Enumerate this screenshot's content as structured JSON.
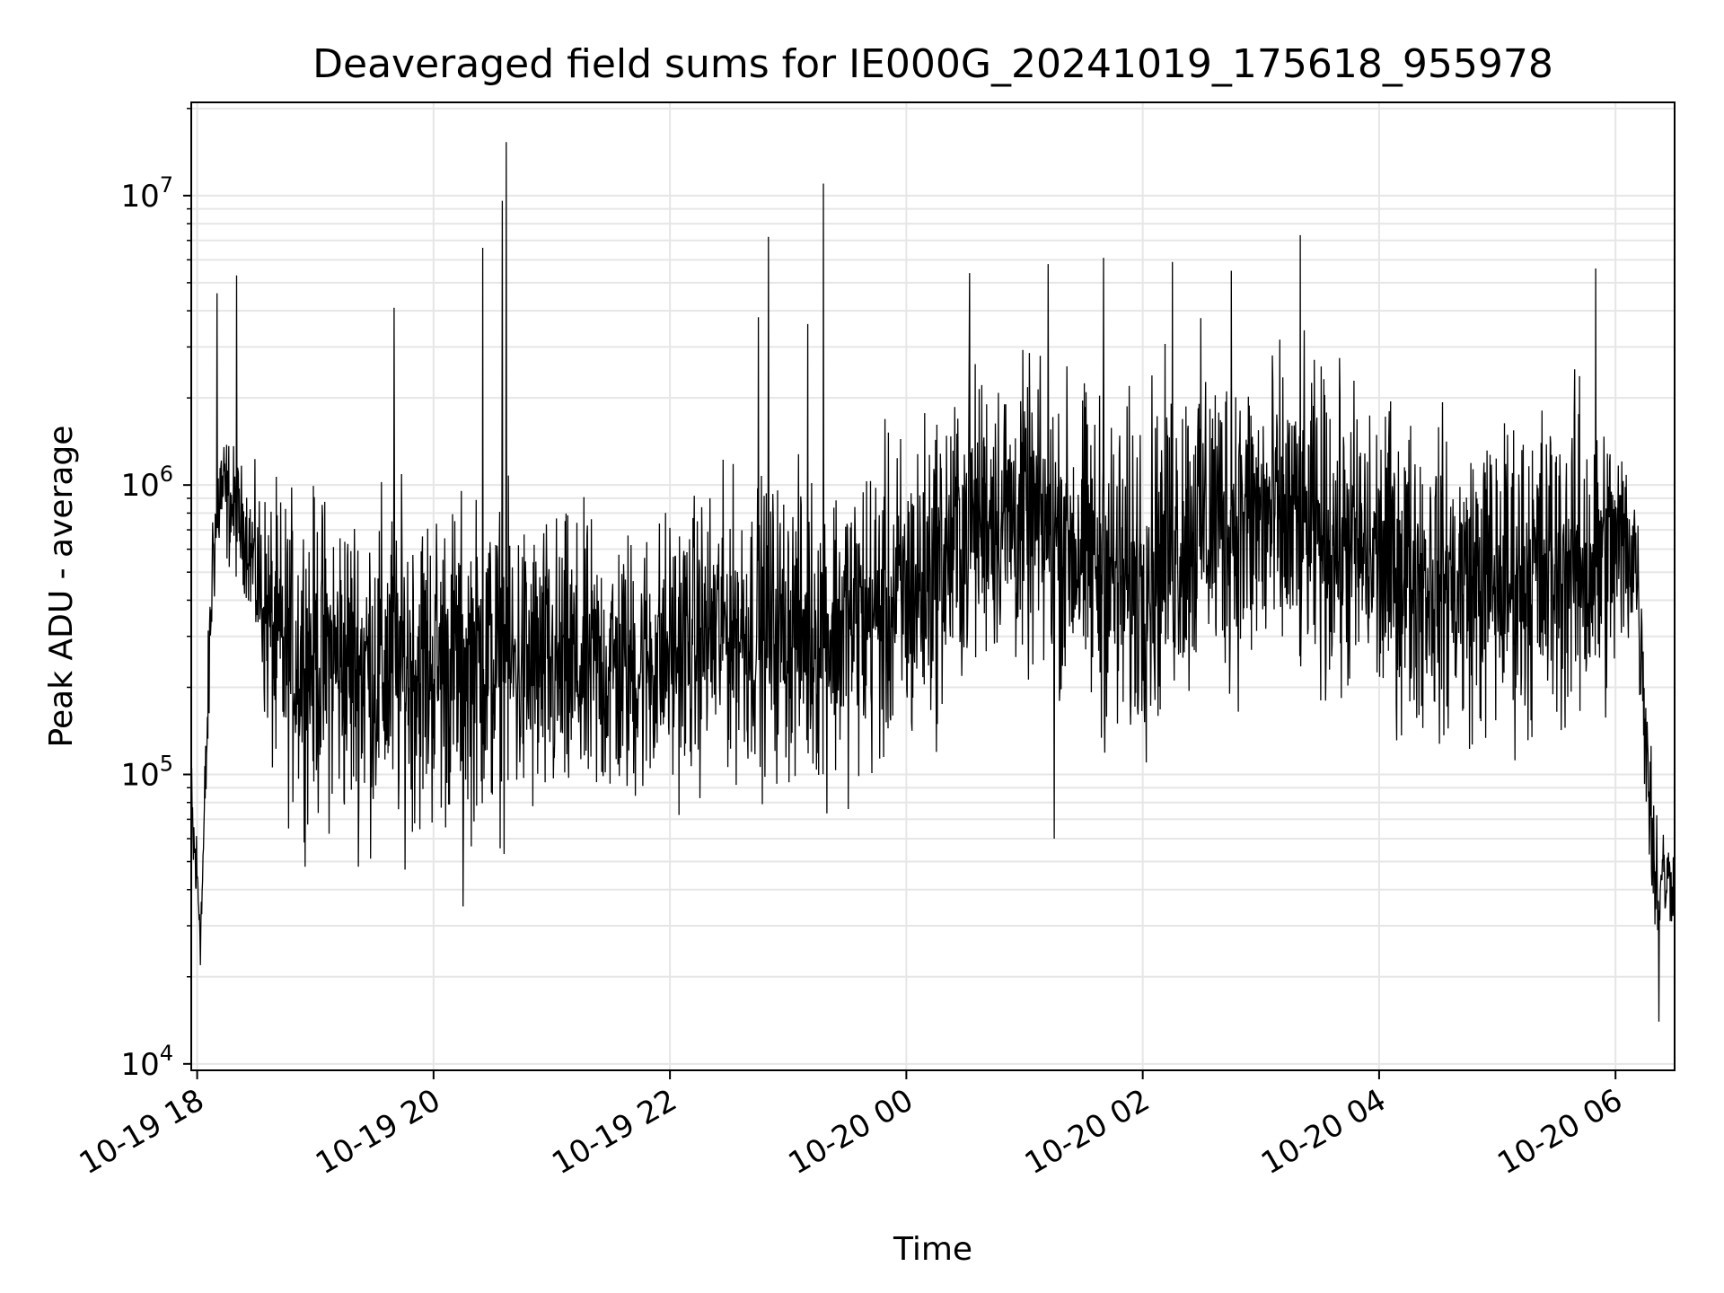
{
  "chart_data": {
    "type": "line",
    "title": "Deaveraged field sums for IE000G_20241019_175618_955978",
    "xlabel": "Time",
    "ylabel": "Peak ADU - average",
    "yscale": "log",
    "xlim": [
      "2024-10-19 17:57",
      "2024-10-20 06:30"
    ],
    "ylim": [
      9500,
      21000000
    ],
    "grid": "on (major and minor)",
    "x_ticks": [
      {
        "value": "2024-10-19 18:00",
        "label": "10-19 18"
      },
      {
        "value": "2024-10-19 20:00",
        "label": "10-19 20"
      },
      {
        "value": "2024-10-19 22:00",
        "label": "10-19 22"
      },
      {
        "value": "2024-10-20 00:00",
        "label": "10-20 00"
      },
      {
        "value": "2024-10-20 02:00",
        "label": "10-20 02"
      },
      {
        "value": "2024-10-20 04:00",
        "label": "10-20 04"
      },
      {
        "value": "2024-10-20 06:00",
        "label": "10-20 06"
      }
    ],
    "y_ticks": [
      {
        "value": 10000,
        "base": "10",
        "exp": "4"
      },
      {
        "value": 100000,
        "base": "10",
        "exp": "5"
      },
      {
        "value": 1000000,
        "base": "10",
        "exp": "6"
      },
      {
        "value": 10000000,
        "base": "10",
        "exp": "7"
      }
    ],
    "series": [
      {
        "color": "#000000",
        "envelope": [
          {
            "x": "2024-10-19 17:57",
            "lo": 35000,
            "hi": 140000
          },
          {
            "x": "2024-10-19 18:02",
            "lo": 18000,
            "hi": 50000
          },
          {
            "x": "2024-10-19 18:08",
            "lo": 300000,
            "hi": 1200000
          },
          {
            "x": "2024-10-19 18:12",
            "lo": 500000,
            "hi": 1900000
          },
          {
            "x": "2024-10-19 18:25",
            "lo": 380000,
            "hi": 1200000
          },
          {
            "x": "2024-10-19 18:40",
            "lo": 60000,
            "hi": 1200000
          },
          {
            "x": "2024-10-19 19:30",
            "lo": 45000,
            "hi": 1200000
          },
          {
            "x": "2024-10-19 20:15",
            "lo": 50000,
            "hi": 1200000
          },
          {
            "x": "2024-10-19 21:00",
            "lo": 50000,
            "hi": 1000000
          },
          {
            "x": "2024-10-19 21:40",
            "lo": 60000,
            "hi": 900000
          },
          {
            "x": "2024-10-19 22:30",
            "lo": 80000,
            "hi": 1300000
          },
          {
            "x": "2024-10-19 23:20",
            "lo": 70000,
            "hi": 1400000
          },
          {
            "x": "2024-10-20 00:00",
            "lo": 80000,
            "hi": 2000000
          },
          {
            "x": "2024-10-20 00:40",
            "lo": 200000,
            "hi": 3500000
          },
          {
            "x": "2024-10-20 01:20",
            "lo": 150000,
            "hi": 3000000
          },
          {
            "x": "2024-10-20 01:50",
            "lo": 80000,
            "hi": 2500000
          },
          {
            "x": "2024-10-20 02:30",
            "lo": 150000,
            "hi": 4000000
          },
          {
            "x": "2024-10-20 03:20",
            "lo": 150000,
            "hi": 3500000
          },
          {
            "x": "2024-10-20 04:00",
            "lo": 120000,
            "hi": 2500000
          },
          {
            "x": "2024-10-20 04:40",
            "lo": 100000,
            "hi": 2000000
          },
          {
            "x": "2024-10-20 05:20",
            "lo": 100000,
            "hi": 2500000
          },
          {
            "x": "2024-10-20 05:50",
            "lo": 100000,
            "hi": 3000000
          },
          {
            "x": "2024-10-20 06:10",
            "lo": 250000,
            "hi": 1500000
          },
          {
            "x": "2024-10-20 06:20",
            "lo": 20000,
            "hi": 100000
          },
          {
            "x": "2024-10-20 06:30",
            "lo": 30000,
            "hi": 60000
          }
        ],
        "spikes": [
          {
            "x": "2024-10-19 18:10",
            "y": 4600000
          },
          {
            "x": "2024-10-19 18:20",
            "y": 5300000
          },
          {
            "x": "2024-10-19 19:40",
            "y": 4100000
          },
          {
            "x": "2024-10-19 20:25",
            "y": 6600000
          },
          {
            "x": "2024-10-19 20:35",
            "y": 9600000
          },
          {
            "x": "2024-10-19 20:37",
            "y": 15300000
          },
          {
            "x": "2024-10-19 22:45",
            "y": 3800000
          },
          {
            "x": "2024-10-19 22:50",
            "y": 7200000
          },
          {
            "x": "2024-10-19 23:10",
            "y": 3600000
          },
          {
            "x": "2024-10-19 23:18",
            "y": 11000000
          },
          {
            "x": "2024-10-20 00:32",
            "y": 5400000
          },
          {
            "x": "2024-10-20 01:12",
            "y": 5800000
          },
          {
            "x": "2024-10-20 01:40",
            "y": 6100000
          },
          {
            "x": "2024-10-20 02:15",
            "y": 5900000
          },
          {
            "x": "2024-10-20 02:45",
            "y": 5500000
          },
          {
            "x": "2024-10-20 03:20",
            "y": 7300000
          },
          {
            "x": "2024-10-20 05:50",
            "y": 5600000
          }
        ],
        "dips": [
          {
            "x": "2024-10-19 20:15",
            "y": 35000
          },
          {
            "x": "2024-10-20 01:15",
            "y": 60000
          },
          {
            "x": "2024-10-20 06:22",
            "y": 14000
          }
        ]
      }
    ]
  }
}
